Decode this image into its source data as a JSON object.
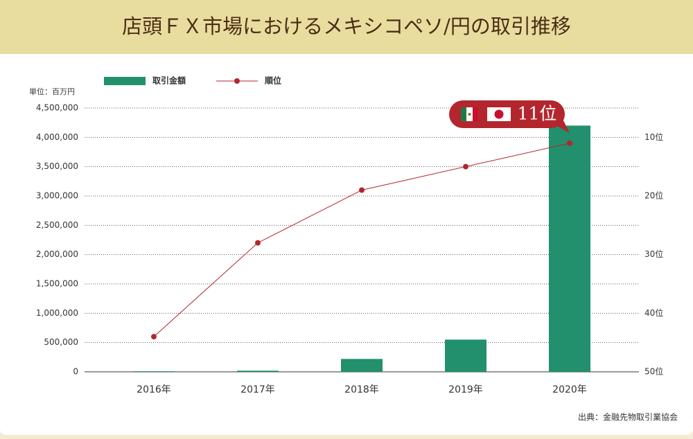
{
  "chart_data": {
    "type": "bar",
    "title": "店頭ＦＸ市場におけるメキシコペソ/円の取引推移",
    "y_unit": "単位：百万円",
    "source": "出典：金融先物取引業協会",
    "annotation": "11位",
    "categories": [
      "2016年",
      "2017年",
      "2018年",
      "2019年",
      "2020年"
    ],
    "series": [
      {
        "name": "取引金額",
        "type": "bar",
        "color": "#22906c",
        "values": [
          10000,
          20000,
          220000,
          550000,
          4200000
        ]
      },
      {
        "name": "順位",
        "type": "line",
        "axis": "y2",
        "color": "#b3262d",
        "values": [
          44,
          28,
          19,
          15,
          11
        ]
      }
    ],
    "ylim": [
      0,
      4500000
    ],
    "yticks": [
      0,
      {
        "value": 500000,
        "label": "500,000"
      },
      {
        "value": 1000000,
        "label": "1,000,000"
      },
      {
        "value": 1500000,
        "label": "1,500,000"
      },
      {
        "value": 2000000,
        "label": "2,000,000"
      },
      {
        "value": 2500000,
        "label": "2,500,000"
      },
      {
        "value": 3000000,
        "label": "3,000,000"
      },
      {
        "value": 3500000,
        "label": "3,500,000"
      },
      {
        "value": 4000000,
        "label": "4,000,000"
      },
      {
        "value": 4500000,
        "label": "4,500,000"
      }
    ],
    "y2lim": [
      50,
      5
    ],
    "y2ticks": [
      {
        "value": 10,
        "label": "10位"
      },
      {
        "value": 20,
        "label": "20位"
      },
      {
        "value": 30,
        "label": "30位"
      },
      {
        "value": 40,
        "label": "40位"
      },
      {
        "value": 50,
        "label": "50位"
      }
    ],
    "grid": true
  }
}
